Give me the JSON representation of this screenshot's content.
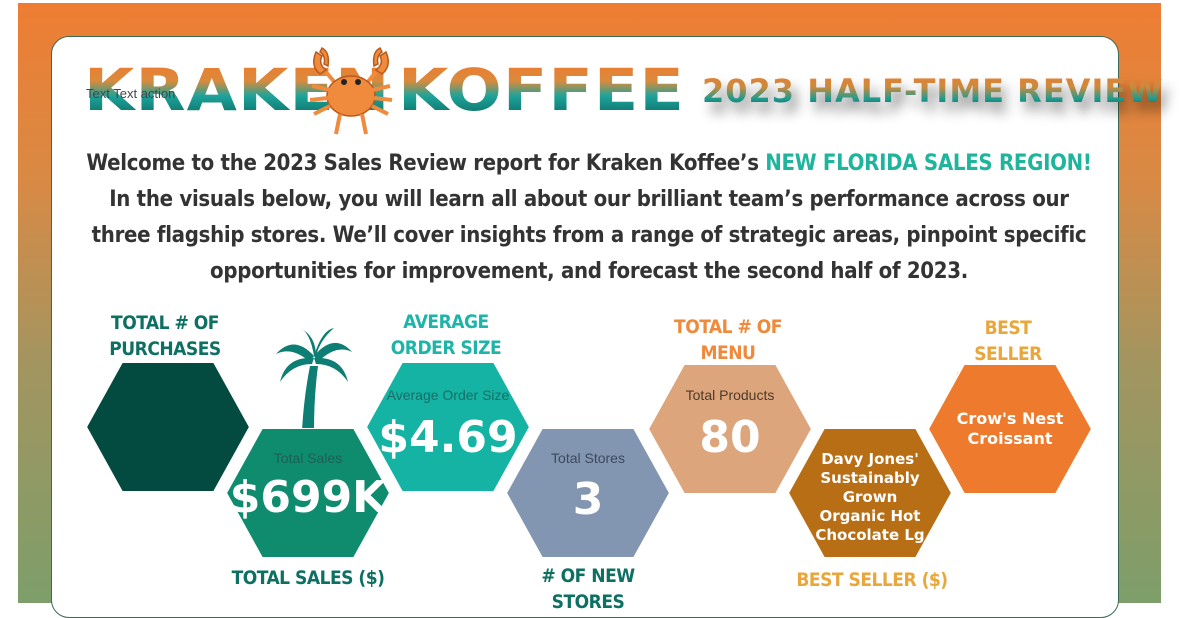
{
  "logo": {
    "left_word": "KRAKEN",
    "right_word": "KOFFEE",
    "overlay_text": "Text Text action",
    "crab_icon": "crab-icon"
  },
  "header": {
    "title": "2023 HALF-TIME REVIEW"
  },
  "intro": {
    "part1": "Welcome to the 2023 Sales Review report for Kraken Koffee’s ",
    "highlight": "NEW FLORIDA SALES REGION!",
    "part2": "  In the visuals below, you will learn all about our brilliant team’s performance across our three flagship stores.  We’ll cover insights from a range of strategic areas, pinpoint specific opportunities for improvement, and forecast the second half of 2023."
  },
  "colors": {
    "frame_top": "#ee7d33",
    "frame_bottom": "#7d9e6a",
    "hex_dark_green": "#034b40",
    "hex_green": "#0f8c6e",
    "hex_teal": "#14b3a3",
    "hex_slate": "#8295b1",
    "hex_tan": "#dda57c",
    "hex_brown": "#b86e15",
    "hex_orange": "#ee7b2d",
    "highlight": "#1fb59c"
  },
  "kpis": {
    "purchases": {
      "title": "TOTAL # OF PURCHASES"
    },
    "sales": {
      "label": "Total Sales",
      "value": "$699K",
      "title": "TOTAL SALES ($)"
    },
    "order_size": {
      "label": "Average Order Size",
      "value": "$4.69",
      "title": "AVERAGE ORDER SIZE"
    },
    "stores": {
      "label": "Total Stores",
      "value": "3",
      "title": "# OF NEW STORES"
    },
    "menu": {
      "label": "Total Products",
      "value": "80",
      "title": "TOTAL # OF MENU ITEMS"
    },
    "best_seller_dollars": {
      "value": "Davy Jones' Sustainably Grown Organic Hot Chocolate Lg",
      "title": "BEST SELLER ($)"
    },
    "best_seller_qty": {
      "value": "Crow's Nest Croissant",
      "title": "BEST SELLER (QUANTITY)"
    }
  },
  "decor": {
    "palm_icon": "palm-tree-icon"
  }
}
